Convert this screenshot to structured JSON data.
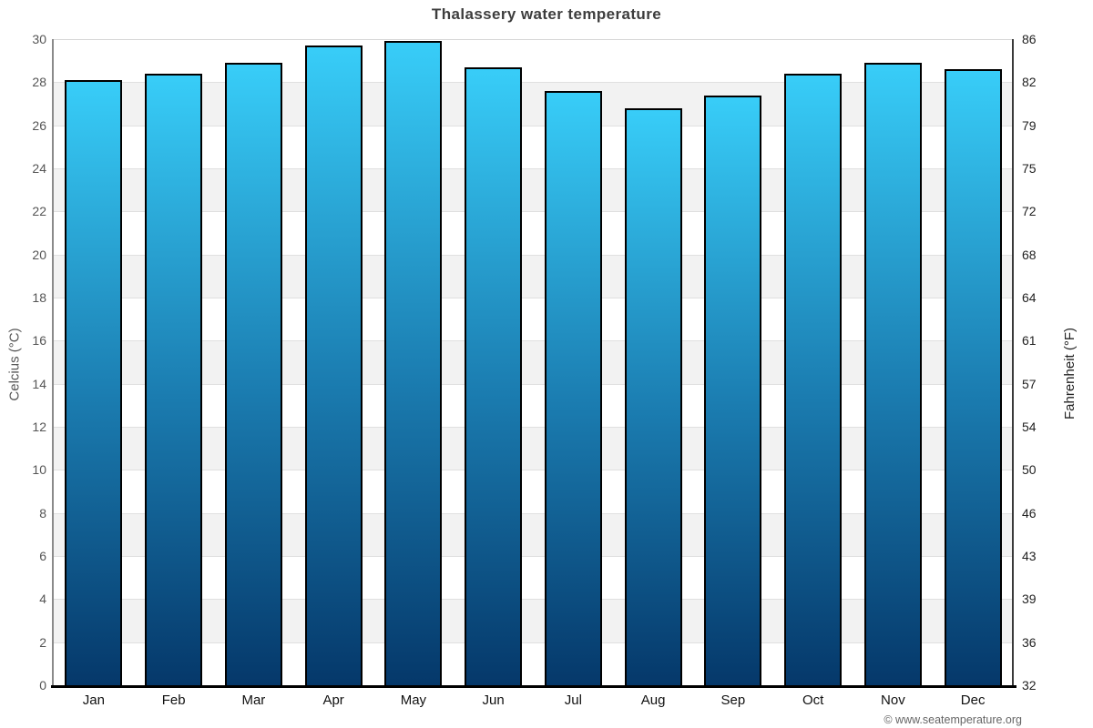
{
  "title": "Thalassery water temperature",
  "copyright": "© www.seatemperature.org",
  "chart_data": {
    "type": "bar",
    "title": "Thalassery water temperature",
    "categories": [
      "Jan",
      "Feb",
      "Mar",
      "Apr",
      "May",
      "Jun",
      "Jul",
      "Aug",
      "Sep",
      "Oct",
      "Nov",
      "Dec"
    ],
    "values": [
      28.1,
      28.4,
      28.9,
      29.7,
      29.9,
      28.7,
      27.6,
      26.8,
      27.4,
      28.4,
      28.9,
      28.6
    ],
    "series_unit": "°C",
    "xlabel": "",
    "ylabel_left": "Celcius (°C)",
    "ylabel_right": "Fahrenheit (°F)",
    "ylim": [
      0,
      30
    ],
    "celsius_ticks": [
      "30",
      "28",
      "26",
      "24",
      "22",
      "20",
      "18",
      "16",
      "14",
      "12",
      "10",
      "8",
      "6",
      "4",
      "2",
      "0"
    ],
    "fahrenheit_ticks": [
      "86",
      "82",
      "79",
      "75",
      "72",
      "68",
      "64",
      "61",
      "57",
      "54",
      "50",
      "46",
      "43",
      "39",
      "36",
      "32"
    ],
    "grid": "horizontal alternating bands every 2°C",
    "legend": "none"
  },
  "colors": {
    "bar_gradient_top": "#38cdf8",
    "bar_gradient_mid": "#1b7db1",
    "bar_gradient_bottom": "#05386a",
    "bar_border": "#000000",
    "band_shaded": "#f2f2f2",
    "band_plain": "#ffffff",
    "title_text": "#3d3d3d",
    "left_tick_text": "#555555",
    "right_tick_text": "#222222",
    "copyright_text": "#666666"
  }
}
